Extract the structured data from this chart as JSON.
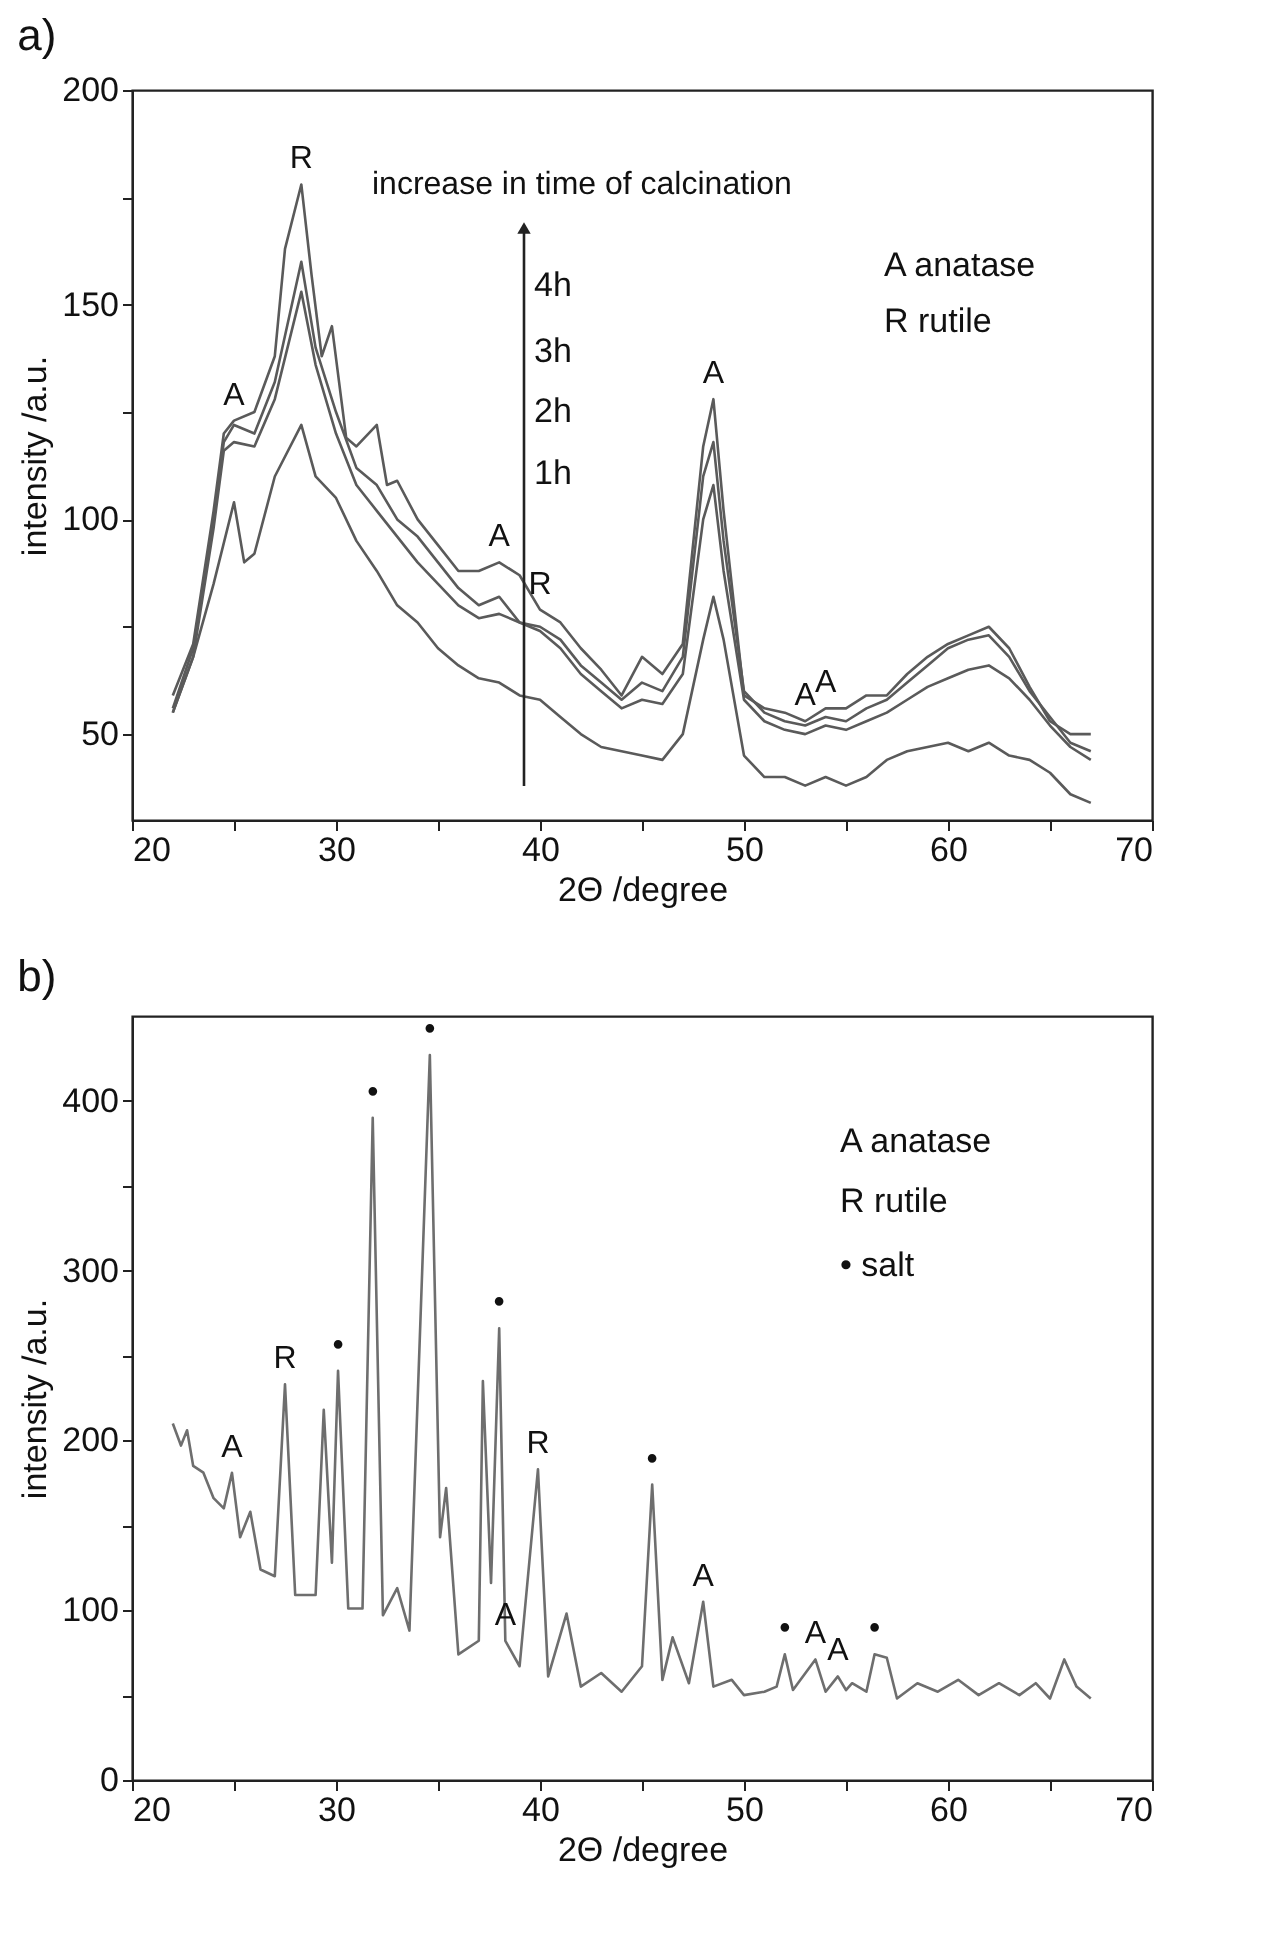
{
  "chart_data": [
    {
      "type": "line",
      "title": "a)",
      "xlabel": "2Θ /degree",
      "ylabel": "intensity /a.u.",
      "xlim": [
        20,
        70
      ],
      "ylim": [
        30,
        200
      ],
      "xticks": [
        20,
        {
          "value": 25,
          "label": null
        },
        30,
        {
          "value": 35,
          "label": null
        },
        40,
        {
          "value": 45,
          "label": null
        },
        50,
        {
          "value": 55,
          "label": null
        },
        60,
        {
          "value": 65,
          "label": null
        },
        70
      ],
      "yticks": [
        50,
        {
          "value": 75,
          "label": null
        },
        100,
        {
          "value": 125,
          "label": null
        },
        150,
        {
          "value": 175,
          "label": null
        },
        200
      ],
      "grid": false,
      "legend": false,
      "series": [
        {
          "color": "#5a5a5a",
          "x": [
            22,
            23,
            24,
            24.5,
            25,
            26,
            27,
            27.5,
            28.3,
            28.8,
            29.3,
            29.8,
            30.5,
            31,
            32,
            32.5,
            33,
            34,
            35,
            36,
            37,
            38,
            39,
            40,
            41,
            42,
            43,
            44,
            45,
            46,
            47,
            48,
            48.5,
            49,
            50,
            51,
            52,
            53,
            54,
            55,
            56,
            57,
            58,
            59,
            60,
            61,
            62,
            63,
            64,
            65,
            66,
            67
          ],
          "values": [
            59,
            71,
            102,
            120,
            123,
            125,
            138,
            163,
            178,
            157,
            138,
            145,
            119,
            117,
            122,
            108,
            109,
            100,
            94,
            88,
            88,
            90,
            87,
            79,
            76,
            70,
            65,
            59,
            68,
            64,
            71,
            117,
            128,
            102,
            59,
            56,
            55,
            53,
            56,
            56,
            59,
            59,
            64,
            68,
            71,
            73,
            75,
            70,
            61,
            53,
            50,
            50
          ]
        },
        {
          "color": "#5a5a5a",
          "x": [
            22,
            23,
            24,
            24.5,
            25,
            26,
            27,
            28.3,
            29,
            30,
            31,
            32,
            33,
            34,
            35,
            36,
            37,
            38,
            39,
            40,
            41,
            42,
            43,
            44,
            45,
            46,
            47,
            48,
            48.5,
            49,
            50,
            51,
            52,
            53,
            54,
            55,
            56,
            57,
            58,
            59,
            60,
            61,
            62,
            63,
            64,
            65,
            66,
            67
          ],
          "values": [
            56,
            70,
            100,
            118,
            122,
            120,
            132,
            160,
            140,
            125,
            112,
            108,
            100,
            96,
            90,
            84,
            80,
            82,
            76,
            75,
            72,
            66,
            62,
            58,
            62,
            60,
            68,
            110,
            118,
            95,
            60,
            55,
            53,
            52,
            54,
            53,
            56,
            58,
            62,
            66,
            70,
            72,
            73,
            68,
            60,
            54,
            48,
            46
          ]
        },
        {
          "color": "#5a5a5a",
          "x": [
            22,
            23,
            24,
            24.5,
            25,
            26,
            27,
            28.3,
            29,
            30,
            31,
            32,
            33,
            34,
            35,
            36,
            37,
            38,
            39,
            40,
            41,
            42,
            43,
            44,
            45,
            46,
            47,
            48,
            48.5,
            49,
            50,
            51,
            52,
            53,
            54,
            55,
            56,
            57,
            58,
            59,
            60,
            61,
            62,
            63,
            64,
            65,
            66,
            67
          ],
          "values": [
            55,
            68,
            98,
            116,
            118,
            117,
            128,
            153,
            136,
            120,
            108,
            102,
            96,
            90,
            85,
            80,
            77,
            78,
            76,
            74,
            70,
            64,
            60,
            56,
            58,
            57,
            64,
            100,
            108,
            88,
            58,
            53,
            51,
            50,
            52,
            51,
            53,
            55,
            58,
            61,
            63,
            65,
            66,
            63,
            58,
            52,
            47,
            44
          ]
        },
        {
          "color": "#5a5a5a",
          "x": [
            22,
            23,
            24,
            25,
            25.5,
            26,
            27,
            28.3,
            29,
            30,
            31,
            32,
            33,
            34,
            35,
            36,
            37,
            38,
            39,
            40,
            41,
            42,
            43,
            44,
            45,
            46,
            47,
            48,
            48.5,
            49,
            50,
            51,
            52,
            53,
            54,
            55,
            56,
            57,
            58,
            59,
            60,
            61,
            62,
            63,
            64,
            65,
            66,
            67
          ],
          "values": [
            55,
            68,
            85,
            104,
            90,
            92,
            110,
            122,
            110,
            105,
            95,
            88,
            80,
            76,
            70,
            66,
            63,
            62,
            59,
            58,
            54,
            50,
            47,
            46,
            45,
            44,
            50,
            72,
            82,
            72,
            45,
            40,
            40,
            38,
            40,
            38,
            40,
            44,
            46,
            47,
            48,
            46,
            48,
            45,
            44,
            41,
            36,
            34
          ]
        }
      ],
      "annotations": [
        {
          "text": "A",
          "x": 25,
          "y": 123
        },
        {
          "text": "R",
          "x": 28.3,
          "y": 178
        },
        {
          "text": "A",
          "x": 38,
          "y": 90
        },
        {
          "text": "R",
          "x": 40,
          "y": 79
        },
        {
          "text": "A",
          "x": 48.5,
          "y": 128
        },
        {
          "text": "A",
          "x": 53,
          "y": 53
        },
        {
          "text": "A",
          "x": 54,
          "y": 56
        },
        "increase in time of calcination",
        "4h",
        "3h",
        "2h",
        "1h",
        "A  anatase",
        "R  rutile"
      ]
    },
    {
      "type": "line",
      "title": "b)",
      "xlabel": "2Θ /degree",
      "ylabel": "intensity /a.u.",
      "xlim": [
        20,
        70
      ],
      "ylim": [
        0,
        450
      ],
      "xticks": [
        20,
        {
          "value": 25,
          "label": null
        },
        30,
        {
          "value": 35,
          "label": null
        },
        40,
        {
          "value": 45,
          "label": null
        },
        50,
        {
          "value": 55,
          "label": null
        },
        60,
        {
          "value": 65,
          "label": null
        },
        70
      ],
      "yticks": [
        0,
        {
          "value": 50,
          "label": null
        },
        100,
        {
          "value": 150,
          "label": null
        },
        200,
        {
          "value": 250,
          "label": null
        },
        300,
        {
          "value": 350,
          "label": null
        },
        400
      ],
      "grid": false,
      "legend": false,
      "series": [
        {
          "color": "#6e6e6e",
          "x": [
            22,
            22.4,
            22.7,
            23,
            23.5,
            24,
            24.5,
            24.9,
            25.3,
            25.8,
            26.3,
            27,
            27.5,
            28,
            29,
            29.4,
            29.8,
            30.1,
            30.6,
            31.3,
            31.8,
            32.3,
            33,
            33.6,
            34.6,
            35.1,
            35.4,
            36,
            37,
            37.2,
            37.6,
            38,
            38.3,
            39,
            39.9,
            40.4,
            41.3,
            42,
            43,
            44,
            45,
            45.5,
            46,
            46.5,
            47.3,
            48,
            48.5,
            49.4,
            50,
            51,
            51.6,
            52,
            52.4,
            53.5,
            54,
            54.6,
            55,
            55.3,
            56,
            56.4,
            57,
            57.5,
            58.5,
            59.5,
            60.5,
            61.5,
            62.5,
            63.5,
            64.3,
            65,
            65.7,
            66.3,
            67
          ],
          "values": [
            210,
            197,
            206,
            185,
            181,
            166,
            160,
            181,
            143,
            158,
            124,
            120,
            233,
            109,
            109,
            218,
            128,
            241,
            101,
            101,
            390,
            97,
            113,
            88,
            427,
            143,
            172,
            74,
            82,
            235,
            116,
            266,
            82,
            67,
            183,
            61,
            98,
            55,
            63,
            52,
            67,
            174,
            59,
            84,
            57,
            105,
            55,
            59,
            50,
            52,
            55,
            74,
            53,
            71,
            52,
            61,
            53,
            57,
            52,
            74,
            72,
            48,
            57,
            52,
            59,
            50,
            57,
            50,
            57,
            48,
            71,
            55,
            48
          ]
        }
      ],
      "annotations": [
        {
          "text": "A",
          "x": 24.9,
          "y": 181
        },
        {
          "text": "R",
          "x": 27.5,
          "y": 233
        },
        {
          "text": "•",
          "x": 30.1,
          "y": 241
        },
        {
          "text": "•",
          "x": 31.8,
          "y": 390
        },
        {
          "text": "•",
          "x": 34.6,
          "y": 427
        },
        {
          "text": "•",
          "x": 38,
          "y": 266
        },
        {
          "text": "A",
          "x": 38.3,
          "y": 82
        },
        {
          "text": "R",
          "x": 39.9,
          "y": 183
        },
        {
          "text": "•",
          "x": 45.5,
          "y": 174
        },
        {
          "text": "A",
          "x": 48,
          "y": 105
        },
        {
          "text": "•",
          "x": 52,
          "y": 74
        },
        {
          "text": "A",
          "x": 53.5,
          "y": 71
        },
        {
          "text": "A",
          "x": 54.6,
          "y": 61
        },
        {
          "text": "•",
          "x": 56.4,
          "y": 74
        },
        "A  anatase",
        "R  rutile",
        "•  salt"
      ]
    }
  ]
}
